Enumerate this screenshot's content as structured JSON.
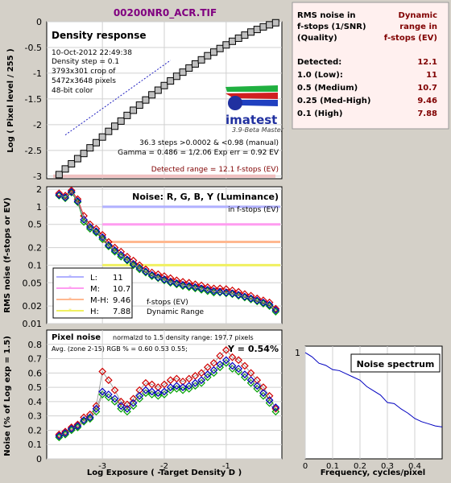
{
  "title": "00200NR0_ACR.TIF",
  "colors": {
    "red": "#c00000",
    "lum": "#7f7fff",
    "grid": "#cccccc",
    "dark": "#800000"
  },
  "summary": {
    "head_left": [
      "RMS noise in",
      "f-stops (1/SNR)",
      "(Quality)"
    ],
    "head_right": [
      "Dynamic",
      "range in",
      "f-stops (EV)"
    ],
    "rows": [
      {
        "label": "Detected:",
        "value": "12.1"
      },
      {
        "label": "1.0   (Low):",
        "value": "11"
      },
      {
        "label": "0.5   (Medium)",
        "value": "10.7"
      },
      {
        "label": "0.25 (Med-High)",
        "value": "9.46"
      },
      {
        "label": "0.1   (High)",
        "value": "7.88"
      }
    ]
  },
  "density_panel": {
    "heading": "Density response",
    "info": [
      "10-Oct-2012 22:49:38",
      "Density step = 0.1",
      "3793x301 crop of",
      "5472x3648 pixels",
      "48-bit color"
    ],
    "logo": "imatest",
    "version": "3.9-Beta  Master",
    "stats": [
      "36.3 steps >0.0002 & <0.98 (manual)",
      "Gamma = 0.486 = 1/2.06  Exp err = 0.92 EV"
    ],
    "detected": "Detected range = 12.1 f-stops (EV)",
    "ylabel": "Log ( Pixel level / 255 )"
  },
  "noise_panel": {
    "heading": "Noise: R, G, B, Y (Luminance)",
    "sub": "in f-stops (EV)",
    "ylabel": "RMS noise (f-stops or EV)",
    "legend": [
      {
        "key": "L:",
        "value": "11",
        "color": "#b0b0ff"
      },
      {
        "key": "M:",
        "value": "10.7",
        "color": "#ff9cf0"
      },
      {
        "key": "M-H:",
        "value": "9.46",
        "color": "#ffb890"
      },
      {
        "key": "H:",
        "value": "7.88",
        "color": "#f0f060"
      }
    ],
    "legend_note": [
      "f-stops (EV)",
      "Dynamic Range"
    ]
  },
  "pixel_panel": {
    "heading": "Pixel noise",
    "normalized": "normalzd to 1.5 density range: 197.7 pixels",
    "avg": "Avg. (zone 2-15) RGB % = 0.60  0.53  0.55;",
    "y_value": "Y = 0.54%",
    "ylabel": "Noise (% of Log exp = 1.5)",
    "xlabel": "Log Exposure ( -Target Density D )"
  },
  "spectrum_panel": {
    "heading": "Noise spectrum",
    "xlabel": "Frequency, cycles/pixel"
  },
  "chart_data": [
    {
      "type": "scatter",
      "name": "density",
      "xlim": [
        -3.9,
        -0.1
      ],
      "ylim": [
        -3.05,
        0
      ],
      "xticks": [
        -3,
        -2,
        -1,
        0
      ],
      "yticks": [
        0,
        -0.5,
        -1,
        -1.5,
        -2,
        -2.5,
        -3
      ],
      "ytick_labels": [
        "0",
        "-0.5",
        "-1",
        "-1.5",
        "-2",
        "-2.5",
        "-3"
      ],
      "x": [
        -3.7,
        -3.6,
        -3.5,
        -3.4,
        -3.3,
        -3.2,
        -3.1,
        -3.0,
        -2.9,
        -2.8,
        -2.7,
        -2.6,
        -2.5,
        -2.4,
        -2.3,
        -2.2,
        -2.1,
        -2.0,
        -1.9,
        -1.8,
        -1.7,
        -1.6,
        -1.5,
        -1.4,
        -1.3,
        -1.2,
        -1.1,
        -1.0,
        -0.9,
        -0.8,
        -0.7,
        -0.6,
        -0.5,
        -0.4,
        -0.3,
        -0.2
      ],
      "y": [
        -2.97,
        -2.86,
        -2.76,
        -2.66,
        -2.56,
        -2.45,
        -2.35,
        -2.24,
        -2.13,
        -2.03,
        -1.93,
        -1.82,
        -1.72,
        -1.62,
        -1.52,
        -1.42,
        -1.33,
        -1.24,
        -1.15,
        -1.06,
        -0.98,
        -0.9,
        -0.82,
        -0.74,
        -0.66,
        -0.59,
        -0.52,
        -0.45,
        -0.38,
        -0.32,
        -0.26,
        -0.2,
        -0.15,
        -0.1,
        -0.06,
        -0.02
      ]
    },
    {
      "type": "scatter",
      "name": "noise_fstops",
      "log_y": true,
      "xlim": [
        -3.9,
        -0.1
      ],
      "ylim": [
        0.01,
        2.2
      ],
      "yticks": [
        2,
        1,
        0.5,
        0.2,
        0.1,
        0.05,
        0.02,
        0.01
      ],
      "ytick_labels": [
        "2",
        "1",
        "0.5",
        "0.2",
        "0.1",
        "0.05",
        "0.02",
        "0.01"
      ],
      "thresholds": [
        1,
        0.5,
        0.25,
        0.1
      ],
      "x": [
        -3.7,
        -3.6,
        -3.5,
        -3.4,
        -3.3,
        -3.2,
        -3.1,
        -3.0,
        -2.9,
        -2.8,
        -2.7,
        -2.6,
        -2.5,
        -2.4,
        -2.3,
        -2.2,
        -2.1,
        -2.0,
        -1.9,
        -1.8,
        -1.7,
        -1.6,
        -1.5,
        -1.4,
        -1.3,
        -1.2,
        -1.1,
        -1.0,
        -0.9,
        -0.8,
        -0.7,
        -0.6,
        -0.5,
        -0.4,
        -0.3,
        -0.2
      ],
      "series": [
        {
          "name": "R",
          "color": "#d00000",
          "values": [
            1.7,
            1.55,
            1.9,
            1.35,
            0.7,
            0.5,
            0.42,
            0.33,
            0.25,
            0.2,
            0.17,
            0.14,
            0.12,
            0.1,
            0.085,
            0.075,
            0.07,
            0.065,
            0.06,
            0.055,
            0.052,
            0.05,
            0.047,
            0.045,
            0.042,
            0.04,
            0.04,
            0.039,
            0.037,
            0.035,
            0.032,
            0.03,
            0.027,
            0.025,
            0.023,
            0.018
          ]
        },
        {
          "name": "G",
          "color": "#00a000",
          "values": [
            1.55,
            1.4,
            1.75,
            1.2,
            0.55,
            0.42,
            0.36,
            0.28,
            0.21,
            0.17,
            0.14,
            0.12,
            0.1,
            0.085,
            0.075,
            0.065,
            0.06,
            0.055,
            0.05,
            0.047,
            0.044,
            0.042,
            0.04,
            0.038,
            0.036,
            0.034,
            0.034,
            0.033,
            0.032,
            0.03,
            0.028,
            0.026,
            0.024,
            0.022,
            0.02,
            0.016
          ]
        },
        {
          "name": "B",
          "color": "#0000c0",
          "values": [
            1.6,
            1.45,
            1.8,
            1.25,
            0.6,
            0.45,
            0.38,
            0.3,
            0.22,
            0.18,
            0.15,
            0.125,
            0.105,
            0.09,
            0.078,
            0.068,
            0.062,
            0.057,
            0.052,
            0.049,
            0.046,
            0.044,
            0.042,
            0.04,
            0.038,
            0.036,
            0.035,
            0.034,
            0.033,
            0.031,
            0.029,
            0.027,
            0.025,
            0.023,
            0.021,
            0.017
          ]
        },
        {
          "name": "Y",
          "color": "#909090",
          "values": [
            1.6,
            1.45,
            1.8,
            1.25,
            0.6,
            0.45,
            0.38,
            0.3,
            0.22,
            0.18,
            0.15,
            0.125,
            0.105,
            0.09,
            0.078,
            0.068,
            0.062,
            0.057,
            0.052,
            0.049,
            0.046,
            0.044,
            0.042,
            0.04,
            0.038,
            0.036,
            0.035,
            0.034,
            0.033,
            0.031,
            0.029,
            0.027,
            0.025,
            0.023,
            0.021,
            0.017
          ]
        }
      ]
    },
    {
      "type": "scatter",
      "name": "pixel_noise",
      "xlim": [
        -3.9,
        -0.1
      ],
      "ylim": [
        0,
        0.9
      ],
      "xticks": [
        -3,
        -2,
        -1
      ],
      "yticks": [
        0.8,
        0.7,
        0.6,
        0.5,
        0.4,
        0.3,
        0.2,
        0.1,
        0
      ],
      "ytick_labels": [
        "0.8",
        "0.7",
        "0.6",
        "0.5",
        "0.4",
        "0.3",
        "0.2",
        "0.1",
        "0"
      ],
      "x": [
        -3.7,
        -3.6,
        -3.5,
        -3.4,
        -3.3,
        -3.2,
        -3.1,
        -3.0,
        -2.9,
        -2.8,
        -2.7,
        -2.6,
        -2.5,
        -2.4,
        -2.3,
        -2.2,
        -2.1,
        -2.0,
        -1.9,
        -1.8,
        -1.7,
        -1.6,
        -1.5,
        -1.4,
        -1.3,
        -1.2,
        -1.1,
        -1.0,
        -0.9,
        -0.8,
        -0.7,
        -0.6,
        -0.5,
        -0.4,
        -0.3,
        -0.2
      ],
      "series": [
        {
          "name": "R",
          "color": "#d00000",
          "values": [
            0.17,
            0.19,
            0.22,
            0.24,
            0.29,
            0.31,
            0.37,
            0.61,
            0.55,
            0.48,
            0.4,
            0.38,
            0.42,
            0.48,
            0.53,
            0.52,
            0.5,
            0.52,
            0.55,
            0.56,
            0.54,
            0.56,
            0.58,
            0.6,
            0.64,
            0.67,
            0.72,
            0.76,
            0.71,
            0.69,
            0.65,
            0.6,
            0.55,
            0.5,
            0.44,
            0.35
          ]
        },
        {
          "name": "G",
          "color": "#00a000",
          "values": [
            0.15,
            0.17,
            0.2,
            0.22,
            0.26,
            0.28,
            0.33,
            0.45,
            0.43,
            0.4,
            0.35,
            0.33,
            0.37,
            0.42,
            0.46,
            0.45,
            0.44,
            0.45,
            0.48,
            0.49,
            0.48,
            0.49,
            0.51,
            0.53,
            0.57,
            0.6,
            0.64,
            0.67,
            0.63,
            0.61,
            0.57,
            0.53,
            0.49,
            0.44,
            0.39,
            0.33
          ]
        },
        {
          "name": "B",
          "color": "#0000c0",
          "values": [
            0.16,
            0.18,
            0.21,
            0.23,
            0.27,
            0.29,
            0.35,
            0.47,
            0.45,
            0.42,
            0.37,
            0.35,
            0.39,
            0.44,
            0.48,
            0.47,
            0.46,
            0.47,
            0.5,
            0.51,
            0.5,
            0.51,
            0.53,
            0.55,
            0.59,
            0.62,
            0.66,
            0.69,
            0.65,
            0.63,
            0.59,
            0.55,
            0.51,
            0.46,
            0.41,
            0.36
          ]
        }
      ]
    },
    {
      "type": "line",
      "name": "noise_spectrum",
      "xlim": [
        0,
        0.5
      ],
      "ylim": [
        0,
        1
      ],
      "xticks": [
        0,
        0.1,
        0.2,
        0.3,
        0.4
      ],
      "xtick_labels": [
        "0",
        "0.1",
        "0.2",
        "0.3",
        "0.4"
      ],
      "yticks": [
        1
      ],
      "ytick_labels": [
        "1"
      ],
      "x": [
        0,
        0.025,
        0.05,
        0.075,
        0.1,
        0.125,
        0.15,
        0.175,
        0.2,
        0.225,
        0.25,
        0.275,
        0.3,
        0.325,
        0.35,
        0.375,
        0.4,
        0.425,
        0.45,
        0.475,
        0.5
      ],
      "y": [
        1.0,
        0.96,
        0.9,
        0.88,
        0.84,
        0.83,
        0.8,
        0.77,
        0.74,
        0.68,
        0.64,
        0.6,
        0.53,
        0.52,
        0.47,
        0.43,
        0.38,
        0.35,
        0.33,
        0.31,
        0.3
      ]
    }
  ]
}
